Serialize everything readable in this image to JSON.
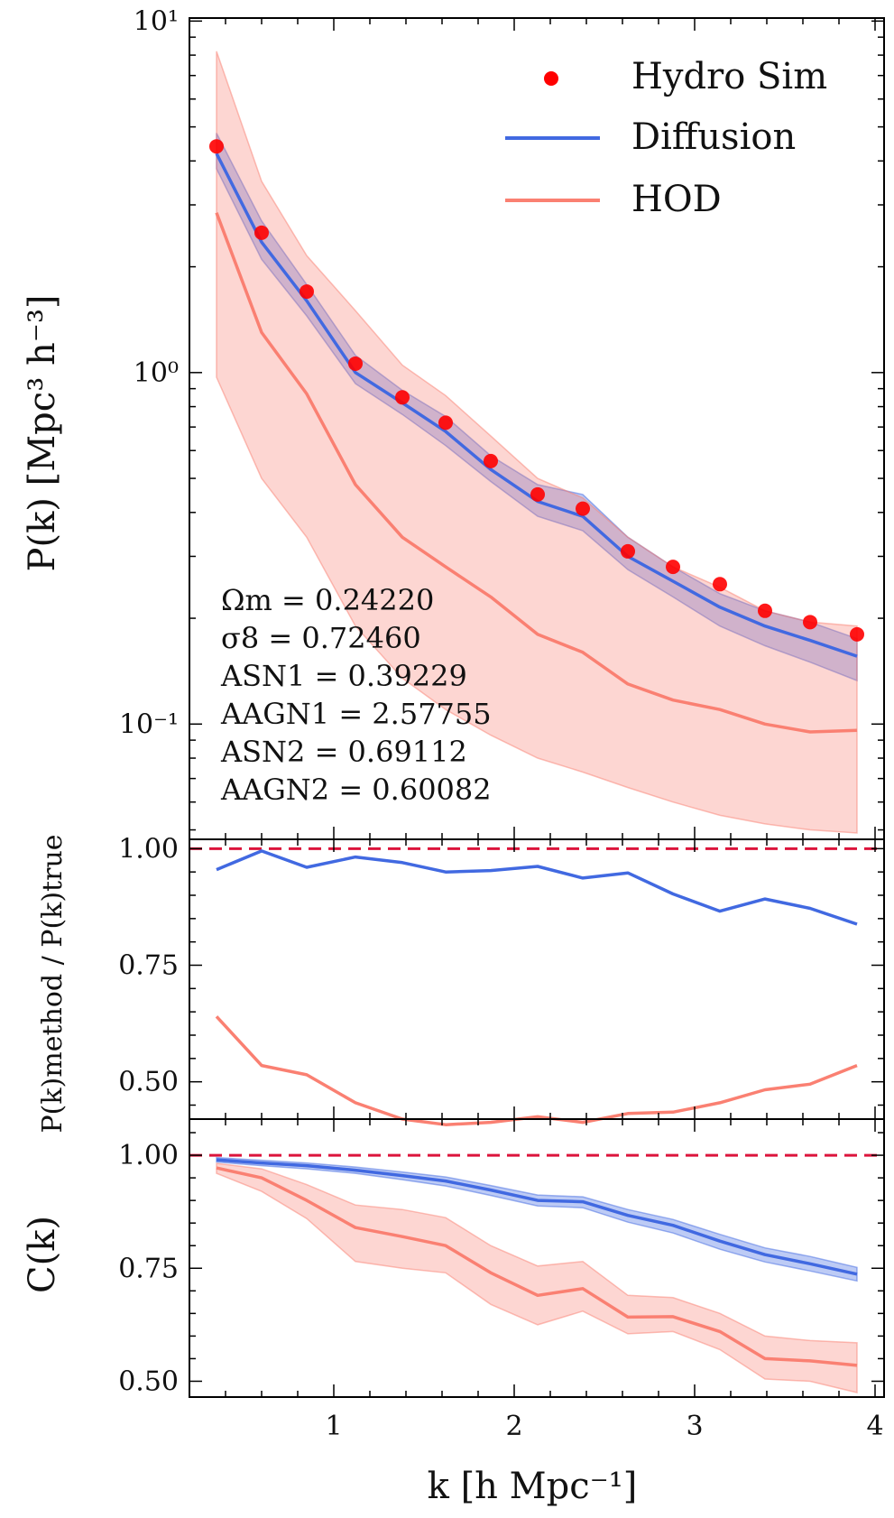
{
  "chart_data": [
    {
      "type": "line",
      "panel": "power-spectrum",
      "yscale": "log",
      "ylabel": "P(k) [Mpc³ h⁻³]",
      "xlim": [
        0.2,
        4.05
      ],
      "ylim": [
        0.047,
        10.2
      ],
      "y_ticks": [
        {
          "value": 10,
          "label": "10¹"
        },
        {
          "value": 1,
          "label": "10⁰"
        },
        {
          "value": 0.1,
          "label": "10⁻¹"
        }
      ],
      "x": [
        0.35,
        0.6,
        0.85,
        1.12,
        1.38,
        1.62,
        1.87,
        2.13,
        2.38,
        2.63,
        2.88,
        3.14,
        3.39,
        3.64,
        3.9
      ],
      "series": [
        {
          "name": "Hydro Sim",
          "kind": "scatter",
          "color": "#ff0000",
          "values": [
            4.4,
            2.5,
            1.7,
            1.06,
            0.85,
            0.72,
            0.56,
            0.45,
            0.41,
            0.31,
            0.28,
            0.25,
            0.21,
            0.195,
            0.18
          ]
        },
        {
          "name": "Diffusion",
          "kind": "line",
          "color": "#4169e1",
          "values": [
            4.2,
            2.35,
            1.6,
            1.0,
            0.82,
            0.68,
            0.53,
            0.43,
            0.39,
            0.3,
            0.255,
            0.215,
            0.19,
            0.173,
            0.156
          ],
          "band_low": [
            3.8,
            2.1,
            1.45,
            0.93,
            0.76,
            0.62,
            0.49,
            0.39,
            0.355,
            0.275,
            0.23,
            0.19,
            0.167,
            0.15,
            0.133
          ],
          "band_high": [
            4.8,
            2.7,
            1.78,
            1.12,
            0.89,
            0.75,
            0.58,
            0.48,
            0.45,
            0.34,
            0.28,
            0.235,
            0.21,
            0.195,
            0.175
          ]
        },
        {
          "name": "HOD",
          "kind": "line",
          "color": "#fa8072",
          "values": [
            2.85,
            1.3,
            0.87,
            0.48,
            0.34,
            0.28,
            0.23,
            0.18,
            0.16,
            0.13,
            0.117,
            0.11,
            0.1,
            0.095,
            0.096
          ],
          "band_low": [
            0.97,
            0.5,
            0.34,
            0.19,
            0.135,
            0.11,
            0.093,
            0.08,
            0.073,
            0.066,
            0.06,
            0.055,
            0.052,
            0.05,
            0.049
          ],
          "band_high": [
            8.2,
            3.5,
            2.15,
            1.5,
            1.05,
            0.86,
            0.66,
            0.5,
            0.44,
            0.34,
            0.28,
            0.245,
            0.21,
            0.195,
            0.19
          ]
        }
      ],
      "legend": {
        "position": "top-right",
        "entries": [
          "Hydro Sim",
          "Diffusion",
          "HOD"
        ]
      },
      "annotations": [
        "Ωm = 0.24220",
        "σ8 = 0.72460",
        "ASN1 = 0.39229",
        "AAGN1 = 2.57755",
        "ASN2 = 0.69112",
        "AAGN2 = 0.60082"
      ]
    },
    {
      "type": "line",
      "panel": "ratio",
      "ylabel": "P(k)method / P(k)true",
      "xlim": [
        0.2,
        4.05
      ],
      "ylim": [
        0.42,
        1.02
      ],
      "y_ticks": [
        {
          "value": 1.0,
          "label": "1.00"
        },
        {
          "value": 0.75,
          "label": "0.75"
        },
        {
          "value": 0.5,
          "label": "0.50"
        }
      ],
      "reference_line": {
        "value": 1.0,
        "style": "dashed",
        "color": "#dc143c"
      },
      "x": [
        0.35,
        0.6,
        0.85,
        1.12,
        1.38,
        1.62,
        1.87,
        2.13,
        2.38,
        2.63,
        2.88,
        3.14,
        3.39,
        3.64,
        3.9
      ],
      "series": [
        {
          "name": "Diffusion",
          "color": "#4169e1",
          "values": [
            0.955,
            0.995,
            0.96,
            0.982,
            0.97,
            0.95,
            0.953,
            0.962,
            0.937,
            0.948,
            0.903,
            0.866,
            0.892,
            0.872,
            0.838
          ]
        },
        {
          "name": "HOD",
          "color": "#fa8072",
          "values": [
            0.64,
            0.535,
            0.515,
            0.455,
            0.42,
            0.408,
            0.413,
            0.425,
            0.413,
            0.432,
            0.435,
            0.455,
            0.483,
            0.495,
            0.535
          ]
        }
      ]
    },
    {
      "type": "line",
      "panel": "cross-correlation",
      "ylabel": "C(k)",
      "xlim": [
        0.2,
        4.05
      ],
      "ylim": [
        0.465,
        1.08
      ],
      "y_ticks": [
        {
          "value": 1.0,
          "label": "1.00"
        },
        {
          "value": 0.75,
          "label": "0.75"
        },
        {
          "value": 0.5,
          "label": "0.50"
        }
      ],
      "x_ticks": [
        {
          "value": 1,
          "label": "1"
        },
        {
          "value": 2,
          "label": "2"
        },
        {
          "value": 3,
          "label": "3"
        },
        {
          "value": 4,
          "label": "4"
        }
      ],
      "xlabel": "k [h Mpc⁻¹]",
      "reference_line": {
        "value": 1.0,
        "style": "dashed",
        "color": "#dc143c"
      },
      "x": [
        0.35,
        0.6,
        0.85,
        1.12,
        1.38,
        1.62,
        1.87,
        2.13,
        2.38,
        2.63,
        2.88,
        3.14,
        3.39,
        3.64,
        3.9
      ],
      "series": [
        {
          "name": "Diffusion",
          "color": "#4169e1",
          "values": [
            0.99,
            0.983,
            0.977,
            0.967,
            0.955,
            0.943,
            0.923,
            0.9,
            0.897,
            0.867,
            0.845,
            0.81,
            0.78,
            0.76,
            0.737
          ],
          "band_low": [
            0.985,
            0.977,
            0.97,
            0.96,
            0.946,
            0.932,
            0.911,
            0.888,
            0.884,
            0.852,
            0.828,
            0.792,
            0.764,
            0.744,
            0.722
          ],
          "band_high": [
            0.995,
            0.989,
            0.983,
            0.974,
            0.963,
            0.952,
            0.933,
            0.912,
            0.908,
            0.88,
            0.858,
            0.825,
            0.795,
            0.776,
            0.752
          ]
        },
        {
          "name": "HOD",
          "color": "#fa8072",
          "values": [
            0.972,
            0.95,
            0.9,
            0.84,
            0.82,
            0.8,
            0.74,
            0.69,
            0.705,
            0.642,
            0.643,
            0.61,
            0.55,
            0.545,
            0.535
          ],
          "band_low": [
            0.96,
            0.92,
            0.86,
            0.765,
            0.75,
            0.74,
            0.67,
            0.625,
            0.655,
            0.605,
            0.61,
            0.57,
            0.505,
            0.5,
            0.475
          ],
          "band_high": [
            0.982,
            0.97,
            0.935,
            0.89,
            0.88,
            0.862,
            0.8,
            0.755,
            0.765,
            0.69,
            0.685,
            0.65,
            0.6,
            0.59,
            0.585
          ]
        }
      ]
    }
  ]
}
